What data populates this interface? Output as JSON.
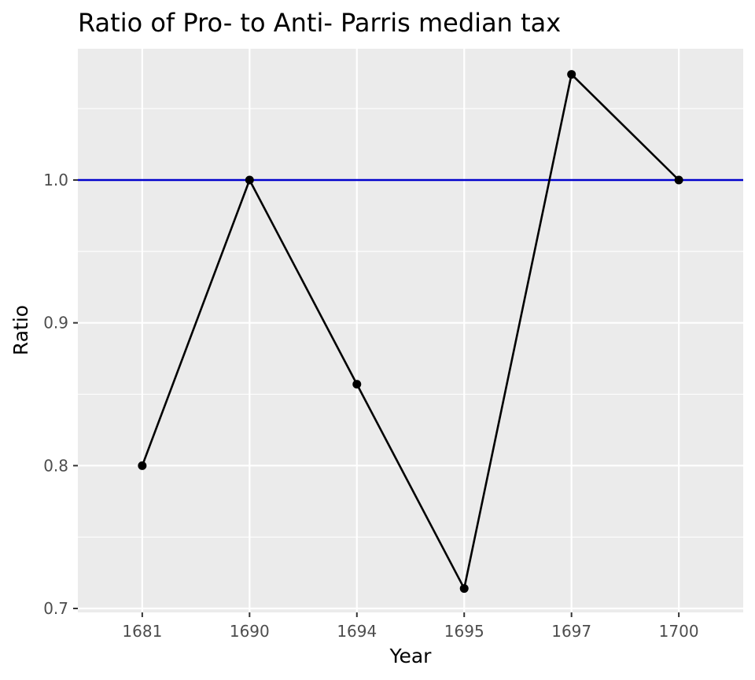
{
  "chart_data": {
    "type": "line",
    "title": "Ratio of Pro- to Anti- Parris median tax",
    "xlabel": "Year",
    "ylabel": "Ratio",
    "categories": [
      "1681",
      "1690",
      "1694",
      "1695",
      "1697",
      "1700"
    ],
    "series": [
      {
        "values": [
          0.8,
          1.0,
          0.857,
          0.714,
          1.074,
          1.0
        ],
        "color": "#000000",
        "markers": true
      }
    ],
    "reference_line": {
      "y": 1.0,
      "color": "#0000cc"
    },
    "yticks": [
      0.7,
      0.8,
      0.9,
      1.0
    ],
    "ytick_labels": [
      "0.7",
      "0.8",
      "0.9",
      "1.0"
    ],
    "ylim": [
      0.7,
      1.09
    ],
    "grid": true,
    "panel_background": "#ebebeb",
    "grid_color": "#ffffff"
  }
}
